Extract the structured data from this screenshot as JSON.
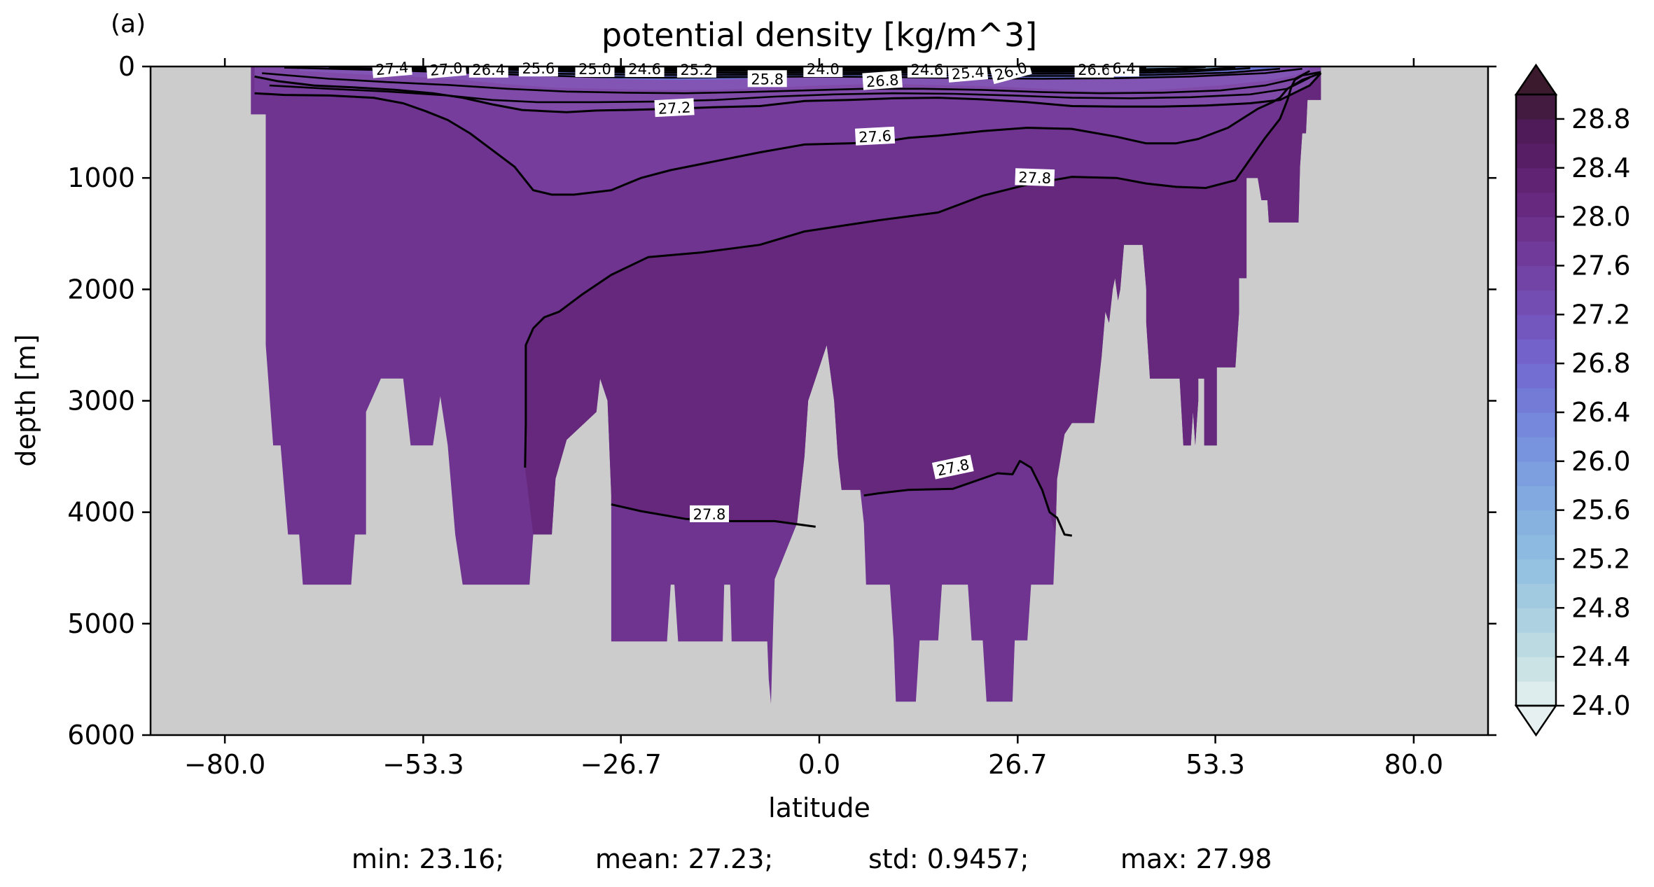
{
  "chart_data": {
    "type": "contour",
    "panel_label": "(a)",
    "title": "potential density [kg/m^3]",
    "xlabel": "latitude",
    "ylabel": "depth [m]",
    "xlim": [
      -90,
      90
    ],
    "ylim": [
      6000,
      0
    ],
    "y_inverted": true,
    "x_ticks": [
      -80.0,
      -53.3,
      -26.7,
      0.0,
      26.7,
      53.3,
      80.0
    ],
    "x_tick_labels": [
      "−80.0",
      "−53.3",
      "−26.7",
      "0.0",
      "26.7",
      "53.3",
      "80.0"
    ],
    "y_ticks": [
      0,
      1000,
      2000,
      3000,
      4000,
      5000,
      6000
    ],
    "y_tick_labels": [
      "0",
      "1000",
      "2000",
      "3000",
      "4000",
      "5000",
      "6000"
    ],
    "colorbar": {
      "min": 24.0,
      "max": 29.0,
      "ticks": [
        24.0,
        24.4,
        24.8,
        25.2,
        25.6,
        26.0,
        26.4,
        26.8,
        27.2,
        27.6,
        28.0,
        28.4,
        28.8
      ],
      "tick_labels": [
        "24.0",
        "24.4",
        "24.8",
        "25.2",
        "25.6",
        "26.0",
        "26.4",
        "26.8",
        "27.2",
        "27.6",
        "28.0",
        "28.4",
        "28.8"
      ],
      "extend": "both",
      "colormap": "dense",
      "color_low": "#e6f0f0",
      "color_high": "#3b1a2e"
    },
    "land_color": "#cccccc",
    "contour_color": "#000000",
    "contours": [
      {
        "level": "27.2",
        "lat": [
          -76,
          -73,
          -68,
          -62,
          -57,
          -52,
          -48,
          -44,
          -40,
          -37,
          -34,
          -30,
          -26,
          -20,
          -14,
          -8,
          -2,
          4,
          10,
          16,
          22,
          28,
          34,
          40,
          46,
          52,
          58,
          62,
          66,
          67.5
        ],
        "depth": [
          90,
          130,
          170,
          190,
          210,
          240,
          280,
          340,
          390,
          400,
          410,
          395,
          390,
          380,
          365,
          355,
          310,
          300,
          285,
          280,
          295,
          320,
          355,
          360,
          360,
          350,
          330,
          300,
          170,
          60
        ]
      },
      {
        "level": "27.6",
        "lat": [
          -76,
          -72,
          -66,
          -60,
          -56,
          -53,
          -50,
          -47,
          -45,
          -43,
          -41,
          -38.5,
          -36,
          -33,
          -28,
          -24,
          -20,
          -14,
          -8,
          -2,
          4,
          8,
          12,
          16,
          22,
          28,
          34,
          40,
          44,
          48,
          51,
          55,
          59,
          61,
          62,
          63,
          65,
          67.5
        ],
        "depth": [
          240,
          255,
          260,
          280,
          330,
          400,
          480,
          600,
          700,
          800,
          900,
          1110,
          1150,
          1150,
          1110,
          1000,
          930,
          850,
          770,
          700,
          690,
          680,
          640,
          620,
          580,
          550,
          560,
          630,
          690,
          690,
          650,
          550,
          380,
          320,
          280,
          200,
          120,
          60
        ]
      },
      {
        "level": "27.8",
        "lat": [
          -39.6,
          -39.5,
          -39.5,
          -38.5,
          -37,
          -35,
          -32,
          -28,
          -23,
          -16,
          -8,
          -2,
          4,
          8,
          16,
          22,
          28,
          34,
          40,
          44,
          48,
          52,
          56,
          60,
          62,
          63,
          63.5,
          64,
          65,
          67.5
        ],
        "depth": [
          3600,
          3200,
          2500,
          2350,
          2250,
          2200,
          2050,
          1870,
          1710,
          1670,
          1600,
          1480,
          1420,
          1380,
          1310,
          1160,
          1060,
          990,
          1000,
          1050,
          1080,
          1090,
          1020,
          640,
          470,
          300,
          190,
          120,
          80,
          50
        ]
      },
      {
        "level": "27.8",
        "lat": [
          -28,
          -24,
          -18,
          -12,
          -6,
          -0.5
        ],
        "depth": [
          3930,
          3990,
          4060,
          4080,
          4080,
          4130
        ]
      },
      {
        "level": "27.8",
        "lat": [
          6,
          8,
          12,
          18,
          24,
          26,
          27,
          28.5,
          30,
          31,
          32,
          33,
          34
        ],
        "depth": [
          3850,
          3830,
          3800,
          3790,
          3650,
          3660,
          3540,
          3600,
          3800,
          4000,
          4050,
          4200,
          4210
        ]
      }
    ],
    "contour_labels": [
      {
        "text": "27.4",
        "lat": -57.5,
        "depth": 20,
        "angle": -5
      },
      {
        "text": "27.0",
        "lat": -50.2,
        "depth": 25,
        "angle": -5
      },
      {
        "text": "26.4",
        "lat": -44.5,
        "depth": 30,
        "angle": 0
      },
      {
        "text": "25.6",
        "lat": -37.8,
        "depth": 20,
        "angle": 0
      },
      {
        "text": "25.0",
        "lat": -30.2,
        "depth": 25,
        "angle": 0
      },
      {
        "text": "24.6",
        "lat": -23.5,
        "depth": 25,
        "angle": 0
      },
      {
        "text": "25.2",
        "lat": -16.5,
        "depth": 30,
        "angle": 0
      },
      {
        "text": "25.8",
        "lat": -7.0,
        "depth": 115,
        "angle": 0
      },
      {
        "text": "24.0",
        "lat": 0.5,
        "depth": 25,
        "angle": 0
      },
      {
        "text": "26.8",
        "lat": 8.5,
        "depth": 130,
        "angle": -4
      },
      {
        "text": "24.6",
        "lat": 14.5,
        "depth": 30,
        "angle": 0
      },
      {
        "text": "25.4",
        "lat": 20.0,
        "depth": 60,
        "angle": -5
      },
      {
        "text": "26.0",
        "lat": 25.8,
        "depth": 45,
        "angle": -15
      },
      {
        "text": "26.6",
        "lat": 37.0,
        "depth": 30,
        "angle": 0
      },
      {
        "text": "6.4",
        "lat": 41.0,
        "depth": 20,
        "angle": 0
      },
      {
        "text": "27.2",
        "lat": -19.5,
        "depth": 375,
        "angle": -3
      },
      {
        "text": "27.6",
        "lat": 7.5,
        "depth": 630,
        "angle": -3
      },
      {
        "text": "27.8",
        "lat": 29,
        "depth": 1000,
        "angle": 2
      },
      {
        "text": "27.8",
        "lat": -14.8,
        "depth": 4020,
        "angle": 0
      },
      {
        "text": "27.8",
        "lat": 18,
        "depth": 3600,
        "angle": -12
      }
    ],
    "statistics": {
      "min": "min: 23.16;",
      "mean": "mean: 27.23;",
      "std": "std: 0.9457;",
      "max": "max: 27.98"
    }
  }
}
